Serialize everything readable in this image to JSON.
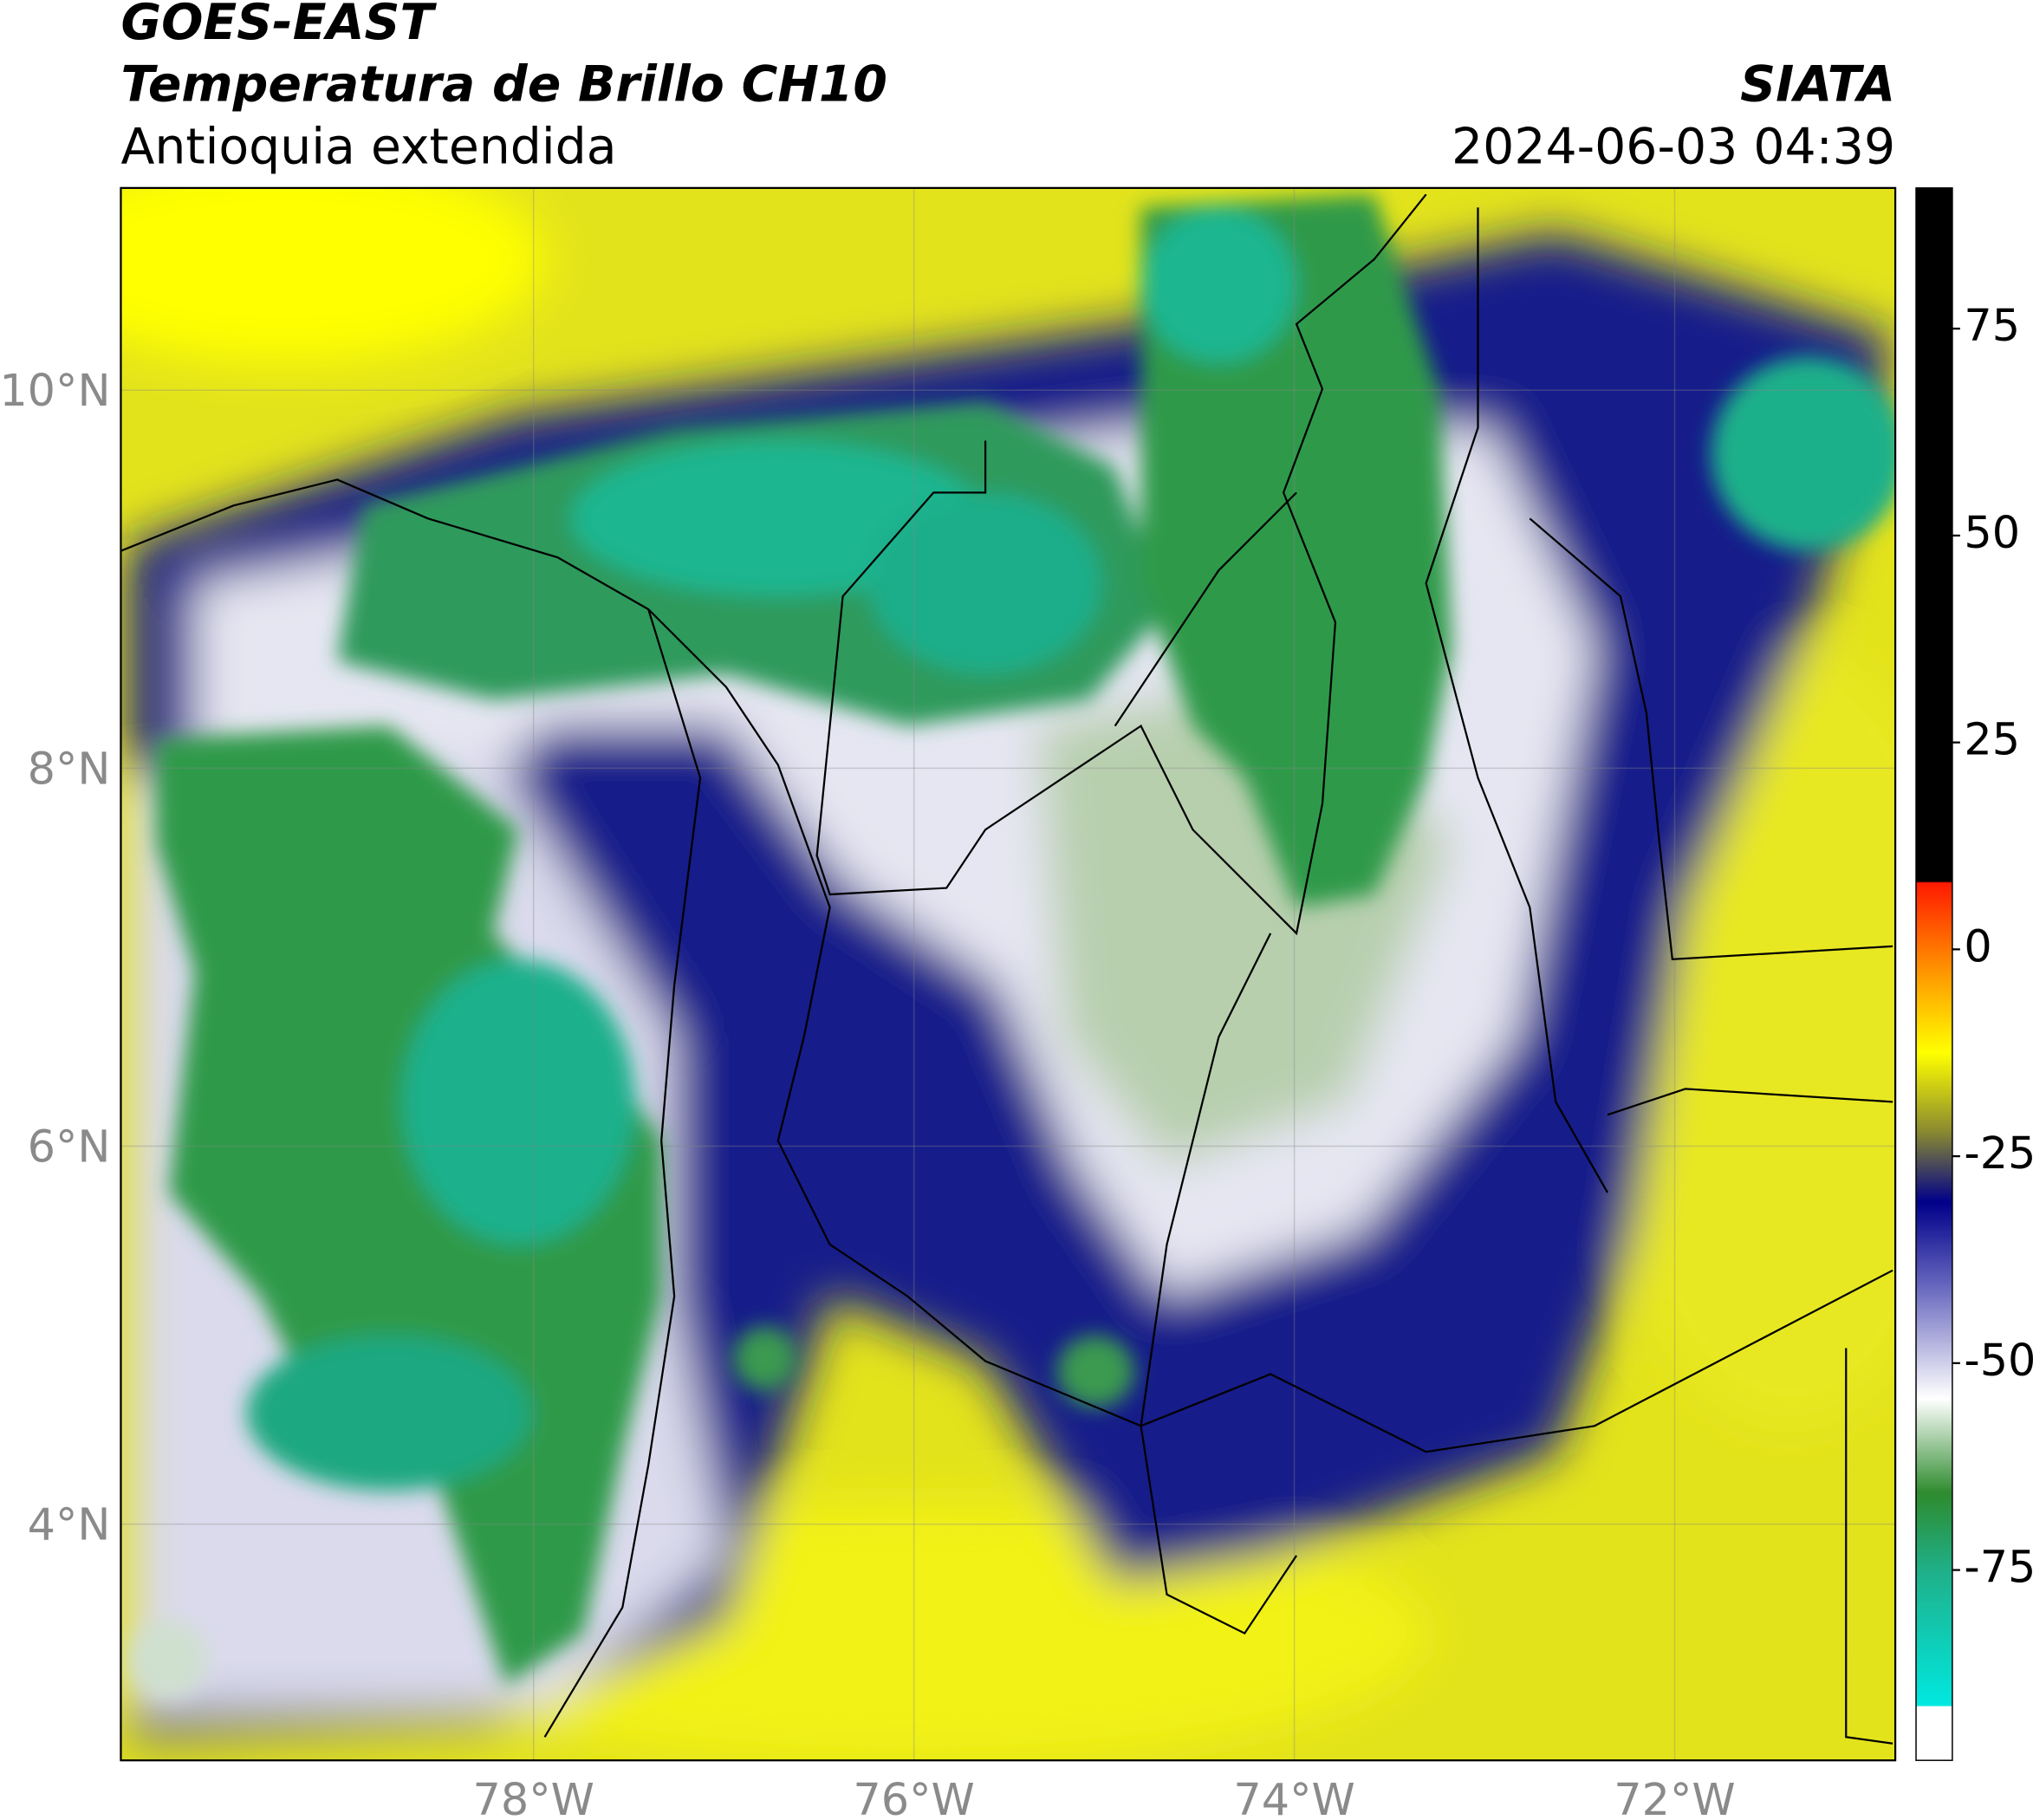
{
  "header": {
    "title": "GOES-EAST",
    "subtitle": "Temperatura de Brillo CH10",
    "region": "Antioquia extendida",
    "source": "SIATA",
    "datetime": "2024-06-03 04:39"
  },
  "map": {
    "lonlim": [
      -80.17,
      -70.84
    ],
    "latlim": [
      2.75,
      11.07
    ],
    "lat_ticks": [
      {
        "value": 10,
        "label": "10°N"
      },
      {
        "value": 8,
        "label": "8°N"
      },
      {
        "value": 6,
        "label": "6°N"
      },
      {
        "value": 4,
        "label": "4°N"
      }
    ],
    "lon_ticks": [
      {
        "value": -78,
        "label": "78°W"
      },
      {
        "value": -76,
        "label": "76°W"
      },
      {
        "value": -74,
        "label": "74°W"
      },
      {
        "value": -72,
        "label": "72°W"
      }
    ]
  },
  "colorbar": {
    "lim": [
      -98,
      92
    ],
    "ticks": [
      75,
      50,
      25,
      0,
      -25,
      -50,
      -75
    ]
  }
}
